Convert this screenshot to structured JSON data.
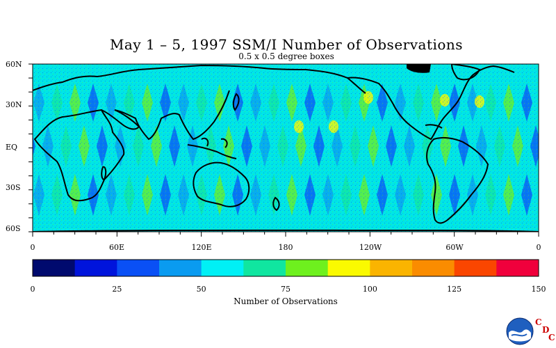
{
  "title": "May 1 – 5, 1997 SSM/I Number of Observations",
  "subtitle": "0.5 x 0.5 degree boxes",
  "lat_labels": [
    "60N",
    "30N",
    "EQ",
    "30S",
    "60S"
  ],
  "lon_labels": [
    "0",
    "60E",
    "120E",
    "180",
    "120W",
    "60W",
    "0"
  ],
  "colorbar": {
    "title": "Number of Observations",
    "tick_labels": [
      "0",
      "25",
      "50",
      "75",
      "100",
      "125",
      "150"
    ],
    "colors": [
      "#000a6e",
      "#0014dc",
      "#0a50f5",
      "#0a9bf0",
      "#00f0f5",
      "#10e6a0",
      "#6ef01e",
      "#fafa00",
      "#fab400",
      "#fa8c00",
      "#fa4600",
      "#f0003c"
    ],
    "range": [
      0,
      150
    ]
  },
  "logo": {
    "name": "NOAA",
    "letters": [
      "C",
      "D",
      "C"
    ]
  }
}
